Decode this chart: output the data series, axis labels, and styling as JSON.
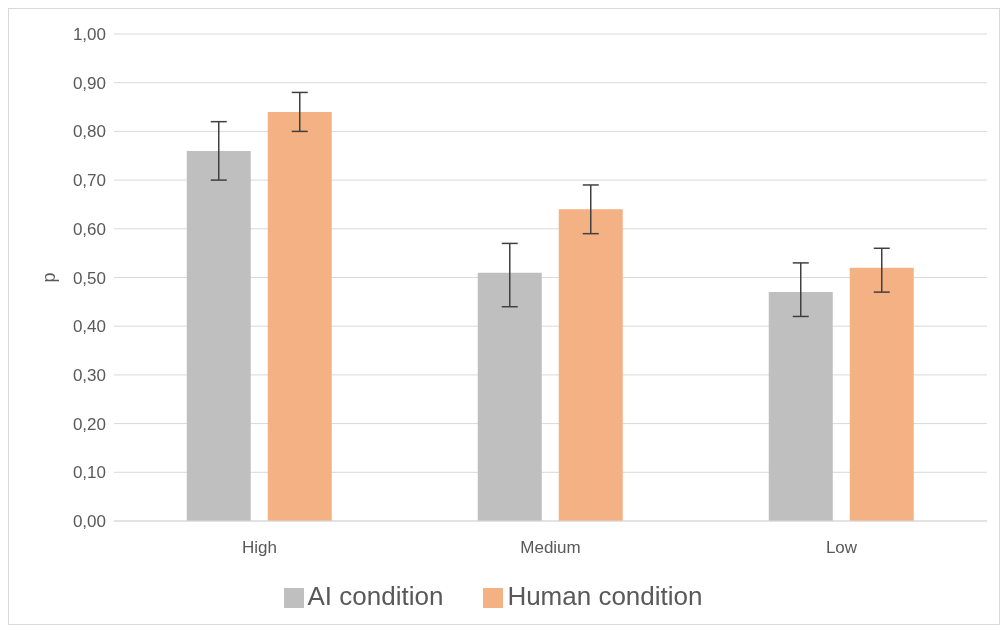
{
  "chart_data": {
    "type": "bar",
    "ylabel": "p",
    "categories": [
      "High",
      "Medium",
      "Low"
    ],
    "series": [
      {
        "name": "AI condition",
        "color": "#bfbfbf",
        "values": [
          0.76,
          0.51,
          0.47
        ],
        "errors": [
          [
            0.7,
            0.82
          ],
          [
            0.44,
            0.57
          ],
          [
            0.42,
            0.53
          ]
        ]
      },
      {
        "name": "Human condition",
        "color": "#f4b183",
        "values": [
          0.84,
          0.64,
          0.52
        ],
        "errors": [
          [
            0.8,
            0.88
          ],
          [
            0.59,
            0.69
          ],
          [
            0.47,
            0.56
          ]
        ]
      }
    ],
    "ylim": [
      0,
      1
    ],
    "yticks": [
      {
        "value": 0,
        "label": "0,00"
      },
      {
        "value": 0.1,
        "label": "0,10"
      },
      {
        "value": 0.2,
        "label": "0,20"
      },
      {
        "value": 0.3,
        "label": "0,30"
      },
      {
        "value": 0.4,
        "label": "0,40"
      },
      {
        "value": 0.5,
        "label": "0,50"
      },
      {
        "value": 0.6,
        "label": "0,60"
      },
      {
        "value": 0.7,
        "label": "0,70"
      },
      {
        "value": 0.8,
        "label": "0,80"
      },
      {
        "value": 0.9,
        "label": "0,90"
      },
      {
        "value": 1,
        "label": "1,00"
      }
    ],
    "grid": "y",
    "legend": "bottom"
  }
}
